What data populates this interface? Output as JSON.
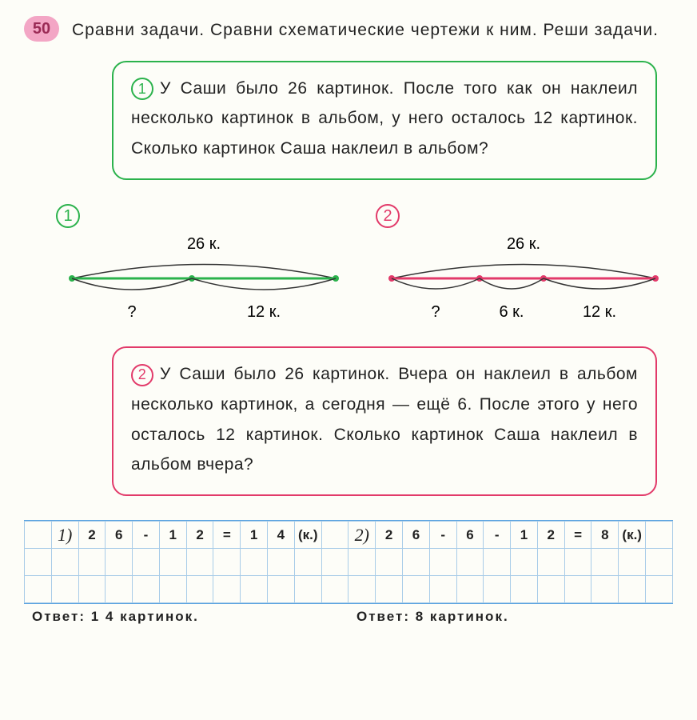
{
  "exercise_number": "50",
  "badge_bg": "#f3a6c5",
  "badge_text_color": "#9a2a55",
  "instruction": "Сравни задачи. Сравни схематические чертежи к ним. Реши задачи.",
  "task1": {
    "border_color": "#2bb24c",
    "circle_color": "#2bb24c",
    "num": "1",
    "text": "У Саши было 26 картинок. После того как он наклеил несколько картинок в альбом, у него осталось 12 картинок. Сколько картинок Саша наклеил в альбом?"
  },
  "task2": {
    "border_color": "#e23a6a",
    "circle_color": "#e23a6a",
    "num": "2",
    "text": "У Саши было 26 картинок. Вчера он наклеил в альбом несколько картинок, а сегодня — ещё 6. После этого у него осталось 12 картинок. Сколько картинок Саша наклеил в альбом вчера?"
  },
  "diagram1": {
    "circle_color": "#2bb24c",
    "num": "1",
    "top_label": "26 к.",
    "line_color": "#2bb24c",
    "arc_color": "#333",
    "bottom_left": "?",
    "bottom_right": "12 к."
  },
  "diagram2": {
    "circle_color": "#e23a6a",
    "num": "2",
    "top_label": "26 к.",
    "line_color": "#e23a6a",
    "arc_color": "#333",
    "bottom_1": "?",
    "bottom_2": "6 к.",
    "bottom_3": "12 к."
  },
  "work": {
    "sol1": {
      "num": "1)",
      "cells": [
        "2",
        "6",
        "-",
        "1",
        "2",
        "=",
        "1",
        "4",
        "(к.)"
      ]
    },
    "sol2": {
      "num": "2)",
      "cells": [
        "2",
        "6",
        "-",
        "6",
        "-",
        "1",
        "2",
        "=",
        "8",
        "(к.)"
      ]
    }
  },
  "answer1_label": "Ответ:",
  "answer1_cells": [
    "1",
    "4",
    "картинок."
  ],
  "answer2_label": "Ответ:",
  "answer2_cells": [
    "8",
    "картинок."
  ],
  "font_sizes": {
    "instr": 21,
    "task": 21,
    "diag_label": 20,
    "grid": 17
  },
  "colors": {
    "bg": "#fdfdf8",
    "grid_line": "#a8cce8",
    "grid_border": "#5aa3e0",
    "text": "#222"
  }
}
